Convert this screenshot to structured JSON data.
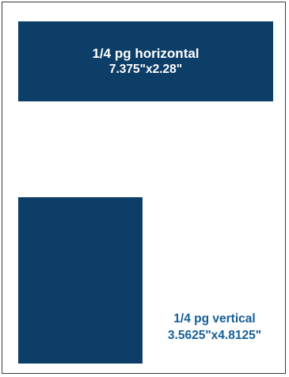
{
  "colors": {
    "ad_fill": "#0c3e68",
    "caption_text": "#155f96",
    "box_text": "#ffffff",
    "frame_border": "#3a3a3a"
  },
  "horizontal_ad": {
    "title": "1/4 pg horizontal",
    "dimensions": "7.375\"x2.28\""
  },
  "vertical_ad": {
    "title": "1/4 pg vertical",
    "dimensions": "3.5625\"x4.8125\""
  }
}
